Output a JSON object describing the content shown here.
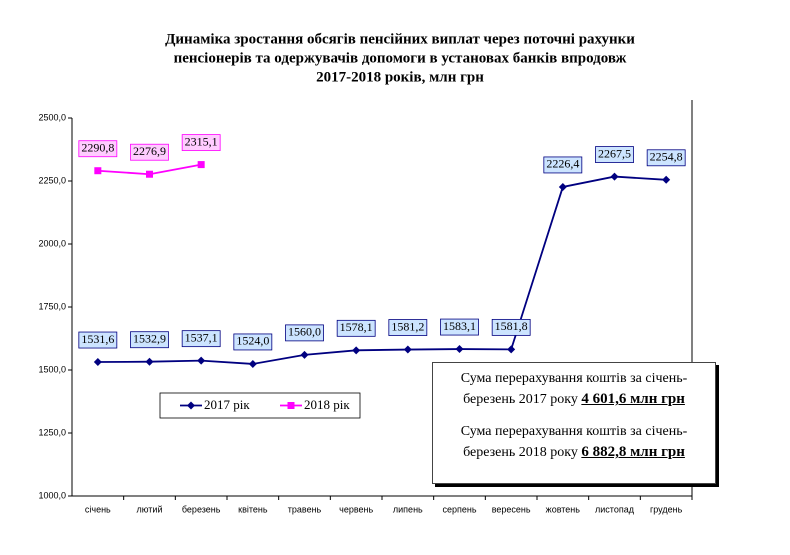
{
  "chart_data": {
    "type": "line",
    "title": [
      "Динаміка зростання обсягів пенсійних виплат через поточні рахунки",
      "пенсіонерів та одержувачів допомоги в установах банків впродовж",
      "2017-2018 років, млн грн"
    ],
    "categories": [
      "січень",
      "лютий",
      "березень",
      "квітень",
      "травень",
      "червень",
      "липень",
      "серпень",
      "вересень",
      "жовтень",
      "листопад",
      "грудень"
    ],
    "series": [
      {
        "name": "2017 рік",
        "color": "#000080",
        "marker": "diamond",
        "label_fill": "#cce4ff",
        "values": [
          1531.6,
          1532.9,
          1537.1,
          1524.0,
          1560.0,
          1578.1,
          1581.2,
          1583.1,
          1581.8,
          2226.4,
          2267.5,
          2254.8
        ],
        "value_labels": [
          "1531,6",
          "1532,9",
          "1537,1",
          "1524,0",
          "1560,0",
          "1578,1",
          "1581,2",
          "1583,1",
          "1581,8",
          "2226,4",
          "2267,5",
          "2254,8"
        ]
      },
      {
        "name": "2018 рік",
        "color": "#ff00ff",
        "marker": "square",
        "label_fill": "#ffccff",
        "values": [
          2290.8,
          2276.9,
          2315.1,
          null,
          null,
          null,
          null,
          null,
          null,
          null,
          null,
          null
        ],
        "value_labels": [
          "2290,8",
          "2276,9",
          "2315,1",
          null,
          null,
          null,
          null,
          null,
          null,
          null,
          null,
          null
        ]
      }
    ],
    "ylim": [
      1000,
      2500
    ],
    "yticks": [
      {
        "value": 1000,
        "label": "1000,0"
      },
      {
        "value": 1250,
        "label": "1250,0"
      },
      {
        "value": 1500,
        "label": "1500,0"
      },
      {
        "value": 1750,
        "label": "1750,0"
      },
      {
        "value": 2000,
        "label": "2000,0"
      },
      {
        "value": 2250,
        "label": "2250,0"
      },
      {
        "value": 2500,
        "label": "2500,0"
      }
    ],
    "annotations": [
      {
        "text": "Сума перерахування коштів за січень-березень 2017 року",
        "amount": "4 601,6 млн грн"
      },
      {
        "text": "Сума перерахування коштів за січень-березень 2018 року",
        "amount": "6 882,8 млн грн"
      }
    ]
  }
}
